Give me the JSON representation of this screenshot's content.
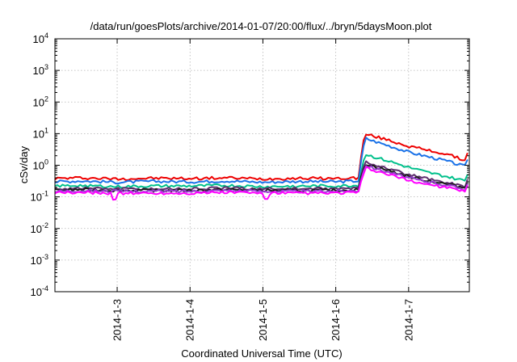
{
  "chart_data": {
    "type": "line",
    "title": "/data/run/goesPlots/archive/2014-01-07/20:00/flux/../bryn/5daysMoon.plot",
    "xlabel": "Coordinated Universal Time (UTC)",
    "ylabel": "cSv/day",
    "y_scale": "log",
    "ylim": [
      0.0001,
      10000
    ],
    "y_ticks": [
      {
        "base": "10",
        "exp": "-4"
      },
      {
        "base": "10",
        "exp": "-3"
      },
      {
        "base": "10",
        "exp": "-2"
      },
      {
        "base": "10",
        "exp": "-1"
      },
      {
        "base": "10",
        "exp": "0"
      },
      {
        "base": "10",
        "exp": "1"
      },
      {
        "base": "10",
        "exp": "2"
      },
      {
        "base": "10",
        "exp": "3"
      },
      {
        "base": "10",
        "exp": "4"
      }
    ],
    "xlim": [
      "2014-01-02 03:30",
      "2014-01-07 20:00"
    ],
    "x_ticks": [
      "2014-1-3",
      "2014-1-4",
      "2014-1-5",
      "2014-1-6",
      "2014-1-7"
    ],
    "grid": true,
    "legend": "none",
    "series": [
      {
        "color": "#ee0000",
        "x": [
          "2014-01-02 03:30",
          "2014-01-02 12:00",
          "2014-01-03 00:00",
          "2014-01-03 12:00",
          "2014-01-04 00:00",
          "2014-01-04 12:00",
          "2014-01-05 00:00",
          "2014-01-05 12:00",
          "2014-01-06 00:00",
          "2014-01-06 08:00",
          "2014-01-06 08:30",
          "2014-01-06 10:00",
          "2014-01-06 12:00",
          "2014-01-06 18:00",
          "2014-01-07 00:00",
          "2014-01-07 06:00",
          "2014-01-07 12:00",
          "2014-01-07 18:00",
          "2014-01-07 19:00",
          "2014-01-07 20:00"
        ],
        "y": [
          0.38,
          0.4,
          0.37,
          0.39,
          0.38,
          0.4,
          0.37,
          0.39,
          0.38,
          0.4,
          4.0,
          9.5,
          8.5,
          6.0,
          4.0,
          3.0,
          2.3,
          1.5,
          1.4,
          5.2
        ]
      },
      {
        "color": "#1a72e8",
        "x": [
          "2014-01-02 03:30",
          "2014-01-02 12:00",
          "2014-01-03 00:00",
          "2014-01-03 12:00",
          "2014-01-04 00:00",
          "2014-01-04 12:00",
          "2014-01-05 00:00",
          "2014-01-05 12:00",
          "2014-01-06 00:00",
          "2014-01-06 08:00",
          "2014-01-06 08:30",
          "2014-01-06 10:00",
          "2014-01-06 12:00",
          "2014-01-06 18:00",
          "2014-01-07 00:00",
          "2014-01-07 06:00",
          "2014-01-07 12:00",
          "2014-01-07 18:00",
          "2014-01-07 19:00",
          "2014-01-07 20:00"
        ],
        "y": [
          0.3,
          0.32,
          0.29,
          0.31,
          0.3,
          0.32,
          0.29,
          0.31,
          0.3,
          0.32,
          2.5,
          7.0,
          6.0,
          4.0,
          2.6,
          1.9,
          1.4,
          0.95,
          0.9,
          4.5
        ]
      },
      {
        "color": "#00c08b",
        "x": [
          "2014-01-02 03:30",
          "2014-01-02 12:00",
          "2014-01-03 00:00",
          "2014-01-03 12:00",
          "2014-01-04 00:00",
          "2014-01-04 12:00",
          "2014-01-05 00:00",
          "2014-01-05 12:00",
          "2014-01-06 00:00",
          "2014-01-06 08:00",
          "2014-01-06 08:30",
          "2014-01-06 10:00",
          "2014-01-06 12:00",
          "2014-01-06 18:00",
          "2014-01-07 00:00",
          "2014-01-07 06:00",
          "2014-01-07 12:00",
          "2014-01-07 18:00",
          "2014-01-07 19:00",
          "2014-01-07 20:00"
        ],
        "y": [
          0.22,
          0.23,
          0.21,
          0.22,
          0.22,
          0.23,
          0.21,
          0.22,
          0.22,
          0.23,
          1.0,
          2.2,
          1.9,
          1.3,
          0.85,
          0.6,
          0.45,
          0.33,
          0.32,
          1.2
        ]
      },
      {
        "color": "#5e2f6e",
        "x": [
          "2014-01-02 03:30",
          "2014-01-02 12:00",
          "2014-01-03 00:00",
          "2014-01-03 12:00",
          "2014-01-04 00:00",
          "2014-01-04 12:00",
          "2014-01-05 00:00",
          "2014-01-05 12:00",
          "2014-01-06 00:00",
          "2014-01-06 08:00",
          "2014-01-06 08:30",
          "2014-01-06 10:00",
          "2014-01-06 12:00",
          "2014-01-06 18:00",
          "2014-01-07 00:00",
          "2014-01-07 06:00",
          "2014-01-07 12:00",
          "2014-01-07 18:00",
          "2014-01-07 19:00",
          "2014-01-07 20:00"
        ],
        "y": [
          0.18,
          0.19,
          0.18,
          0.18,
          0.18,
          0.19,
          0.18,
          0.18,
          0.18,
          0.19,
          0.7,
          1.3,
          1.1,
          0.75,
          0.5,
          0.37,
          0.29,
          0.22,
          0.21,
          0.8
        ]
      },
      {
        "color": "#1b1b1b",
        "x": [
          "2014-01-02 03:30",
          "2014-01-02 12:00",
          "2014-01-03 00:00",
          "2014-01-03 12:00",
          "2014-01-04 00:00",
          "2014-01-04 12:00",
          "2014-01-05 00:00",
          "2014-01-05 12:00",
          "2014-01-06 00:00",
          "2014-01-06 08:00",
          "2014-01-06 08:30",
          "2014-01-06 10:00",
          "2014-01-06 12:00",
          "2014-01-06 18:00",
          "2014-01-07 00:00",
          "2014-01-07 06:00",
          "2014-01-07 12:00",
          "2014-01-07 18:00",
          "2014-01-07 19:00",
          "2014-01-07 20:00"
        ],
        "y": [
          0.16,
          0.17,
          0.16,
          0.16,
          0.16,
          0.17,
          0.16,
          0.16,
          0.16,
          0.17,
          0.6,
          1.1,
          0.95,
          0.65,
          0.44,
          0.33,
          0.26,
          0.2,
          0.19,
          0.7
        ]
      },
      {
        "color": "#9a3cd2",
        "x": [
          "2014-01-02 03:30",
          "2014-01-02 12:00",
          "2014-01-03 00:00",
          "2014-01-03 12:00",
          "2014-01-04 00:00",
          "2014-01-04 12:00",
          "2014-01-05 00:00",
          "2014-01-05 12:00",
          "2014-01-06 00:00",
          "2014-01-06 08:00",
          "2014-01-06 08:30",
          "2014-01-06 10:00",
          "2014-01-06 12:00",
          "2014-01-06 18:00",
          "2014-01-07 00:00",
          "2014-01-07 06:00",
          "2014-01-07 12:00",
          "2014-01-07 18:00",
          "2014-01-07 19:00",
          "2014-01-07 20:00"
        ],
        "y": [
          0.15,
          0.16,
          0.15,
          0.15,
          0.15,
          0.16,
          0.15,
          0.15,
          0.15,
          0.16,
          0.55,
          0.95,
          0.85,
          0.58,
          0.4,
          0.3,
          0.24,
          0.18,
          0.17,
          0.6
        ]
      },
      {
        "color": "#ff00ff",
        "x": [
          "2014-01-02 03:30",
          "2014-01-02 12:00",
          "2014-01-02 22:00",
          "2014-01-02 23:00",
          "2014-01-03 00:00",
          "2014-01-03 12:00",
          "2014-01-04 00:00",
          "2014-01-04 12:00",
          "2014-01-05 00:00",
          "2014-01-05 01:00",
          "2014-01-05 02:00",
          "2014-01-05 12:00",
          "2014-01-06 00:00",
          "2014-01-06 08:00",
          "2014-01-06 08:30",
          "2014-01-06 10:00",
          "2014-01-06 12:00",
          "2014-01-06 18:00",
          "2014-01-07 00:00",
          "2014-01-07 06:00",
          "2014-01-07 12:00",
          "2014-01-07 18:00",
          "2014-01-07 19:00",
          "2014-01-07 20:00"
        ],
        "y": [
          0.13,
          0.14,
          0.13,
          0.06,
          0.13,
          0.13,
          0.13,
          0.14,
          0.13,
          0.06,
          0.13,
          0.13,
          0.13,
          0.14,
          0.45,
          0.8,
          0.7,
          0.48,
          0.33,
          0.25,
          0.2,
          0.15,
          0.14,
          0.5
        ]
      }
    ]
  }
}
